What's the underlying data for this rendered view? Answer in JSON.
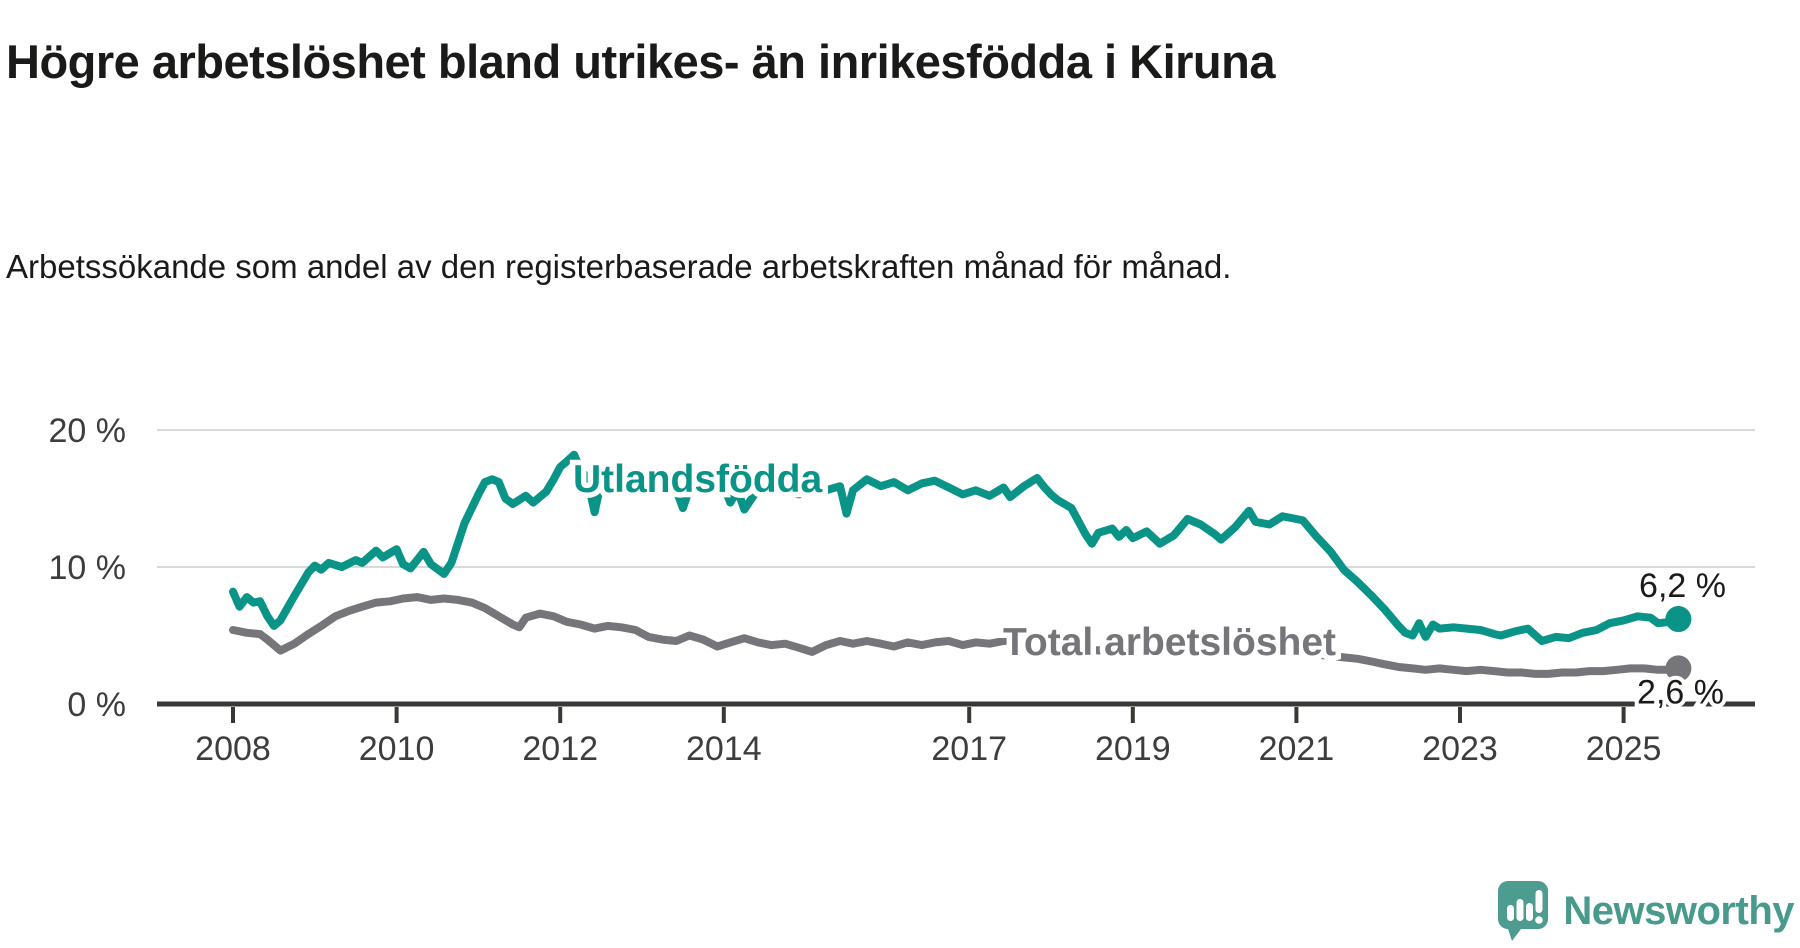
{
  "chart_data": {
    "type": "line",
    "title": "Högre arbetslöshet bland utrikes- än inrikesfödda i Kiruna",
    "subtitle": "Arbetssökande som andel av den registerbaserade arbetskraften månad för månad.",
    "xlabel": "",
    "ylabel": "",
    "xlim": [
      2007.1,
      2026.6
    ],
    "ylim": [
      0,
      20
    ],
    "grid": true,
    "legend_position": "inline",
    "x_ticks": [
      {
        "year": 2008,
        "label": "2008"
      },
      {
        "year": 2010,
        "label": "2010"
      },
      {
        "year": 2012,
        "label": "2012"
      },
      {
        "year": 2014,
        "label": "2014"
      },
      {
        "year": 2017,
        "label": "2017"
      },
      {
        "year": 2019,
        "label": "2019"
      },
      {
        "year": 2021,
        "label": "2021"
      },
      {
        "year": 2023,
        "label": "2023"
      },
      {
        "year": 2025,
        "label": "2025"
      }
    ],
    "y_ticks": [
      {
        "value": 0,
        "label": "0 %"
      },
      {
        "value": 10,
        "label": "10 %"
      },
      {
        "value": 20,
        "label": "20 %"
      }
    ],
    "series": [
      {
        "name": "Utlandsfödda",
        "inline_label": "Utlandsfödda",
        "color": "#0a9387",
        "end_value": 6.2,
        "end_value_label": "6,2 %",
        "points": [
          [
            2008.0,
            8.2
          ],
          [
            2008.08,
            7.1
          ],
          [
            2008.17,
            7.8
          ],
          [
            2008.25,
            7.4
          ],
          [
            2008.33,
            7.5
          ],
          [
            2008.42,
            6.4
          ],
          [
            2008.5,
            5.7
          ],
          [
            2008.58,
            6.1
          ],
          [
            2008.75,
            7.9
          ],
          [
            2008.92,
            9.6
          ],
          [
            2009.0,
            10.1
          ],
          [
            2009.08,
            9.8
          ],
          [
            2009.17,
            10.3
          ],
          [
            2009.33,
            10.0
          ],
          [
            2009.5,
            10.5
          ],
          [
            2009.58,
            10.3
          ],
          [
            2009.75,
            11.2
          ],
          [
            2009.83,
            10.7
          ],
          [
            2010.0,
            11.3
          ],
          [
            2010.08,
            10.2
          ],
          [
            2010.17,
            9.9
          ],
          [
            2010.33,
            11.1
          ],
          [
            2010.42,
            10.2
          ],
          [
            2010.58,
            9.5
          ],
          [
            2010.67,
            10.3
          ],
          [
            2010.83,
            13.2
          ],
          [
            2011.0,
            15.3
          ],
          [
            2011.08,
            16.2
          ],
          [
            2011.17,
            16.4
          ],
          [
            2011.25,
            16.2
          ],
          [
            2011.33,
            15.0
          ],
          [
            2011.42,
            14.6
          ],
          [
            2011.5,
            14.9
          ],
          [
            2011.58,
            15.2
          ],
          [
            2011.67,
            14.7
          ],
          [
            2011.83,
            15.5
          ],
          [
            2011.92,
            16.4
          ],
          [
            2012.0,
            17.3
          ],
          [
            2012.08,
            17.7
          ],
          [
            2012.17,
            18.2
          ],
          [
            2012.25,
            17.1
          ],
          [
            2012.33,
            16.5
          ],
          [
            2012.42,
            14.0
          ],
          [
            2012.5,
            16.2
          ],
          [
            2012.58,
            16.5
          ],
          [
            2012.75,
            16.1
          ],
          [
            2012.92,
            16.4
          ],
          [
            2013.08,
            15.8
          ],
          [
            2013.25,
            16.2
          ],
          [
            2013.42,
            15.6
          ],
          [
            2013.5,
            14.3
          ],
          [
            2013.58,
            15.7
          ],
          [
            2013.75,
            16.0
          ],
          [
            2013.92,
            15.6
          ],
          [
            2014.0,
            15.9
          ],
          [
            2014.08,
            14.7
          ],
          [
            2014.17,
            15.6
          ],
          [
            2014.25,
            14.2
          ],
          [
            2014.42,
            15.7
          ],
          [
            2014.58,
            15.9
          ],
          [
            2014.75,
            15.6
          ],
          [
            2014.92,
            15.3
          ],
          [
            2015.08,
            15.8
          ],
          [
            2015.25,
            15.6
          ],
          [
            2015.42,
            15.9
          ],
          [
            2015.5,
            13.9
          ],
          [
            2015.58,
            15.6
          ],
          [
            2015.75,
            16.4
          ],
          [
            2015.92,
            15.9
          ],
          [
            2016.08,
            16.2
          ],
          [
            2016.25,
            15.6
          ],
          [
            2016.42,
            16.1
          ],
          [
            2016.58,
            16.3
          ],
          [
            2016.75,
            15.8
          ],
          [
            2016.92,
            15.3
          ],
          [
            2017.08,
            15.6
          ],
          [
            2017.25,
            15.2
          ],
          [
            2017.42,
            15.8
          ],
          [
            2017.5,
            15.1
          ],
          [
            2017.67,
            15.9
          ],
          [
            2017.83,
            16.5
          ],
          [
            2017.92,
            15.8
          ],
          [
            2018.0,
            15.3
          ],
          [
            2018.08,
            14.9
          ],
          [
            2018.25,
            14.3
          ],
          [
            2018.42,
            12.4
          ],
          [
            2018.5,
            11.7
          ],
          [
            2018.58,
            12.5
          ],
          [
            2018.75,
            12.8
          ],
          [
            2018.83,
            12.2
          ],
          [
            2018.92,
            12.7
          ],
          [
            2019.0,
            12.1
          ],
          [
            2019.17,
            12.6
          ],
          [
            2019.33,
            11.7
          ],
          [
            2019.5,
            12.3
          ],
          [
            2019.67,
            13.5
          ],
          [
            2019.83,
            13.1
          ],
          [
            2020.0,
            12.4
          ],
          [
            2020.08,
            12.0
          ],
          [
            2020.25,
            12.9
          ],
          [
            2020.42,
            14.1
          ],
          [
            2020.5,
            13.3
          ],
          [
            2020.67,
            13.1
          ],
          [
            2020.83,
            13.7
          ],
          [
            2021.0,
            13.5
          ],
          [
            2021.08,
            13.4
          ],
          [
            2021.25,
            12.2
          ],
          [
            2021.42,
            11.1
          ],
          [
            2021.58,
            9.8
          ],
          [
            2021.75,
            8.9
          ],
          [
            2021.92,
            7.9
          ],
          [
            2022.08,
            6.9
          ],
          [
            2022.25,
            5.7
          ],
          [
            2022.33,
            5.2
          ],
          [
            2022.42,
            5.0
          ],
          [
            2022.5,
            5.9
          ],
          [
            2022.58,
            4.9
          ],
          [
            2022.67,
            5.8
          ],
          [
            2022.75,
            5.5
          ],
          [
            2022.92,
            5.6
          ],
          [
            2023.08,
            5.5
          ],
          [
            2023.25,
            5.4
          ],
          [
            2023.42,
            5.1
          ],
          [
            2023.5,
            5.0
          ],
          [
            2023.67,
            5.3
          ],
          [
            2023.83,
            5.5
          ],
          [
            2024.0,
            4.6
          ],
          [
            2024.17,
            4.9
          ],
          [
            2024.33,
            4.8
          ],
          [
            2024.5,
            5.2
          ],
          [
            2024.67,
            5.4
          ],
          [
            2024.83,
            5.9
          ],
          [
            2025.0,
            6.1
          ],
          [
            2025.17,
            6.4
          ],
          [
            2025.33,
            6.3
          ],
          [
            2025.42,
            5.9
          ],
          [
            2025.58,
            6.0
          ],
          [
            2025.67,
            6.2
          ]
        ]
      },
      {
        "name": "Total arbetslöshet",
        "inline_label": "Total arbetslöshet",
        "color": "#76757a",
        "end_value": 2.6,
        "end_value_label": "2,6 %",
        "points": [
          [
            2008.0,
            5.4
          ],
          [
            2008.17,
            5.2
          ],
          [
            2008.33,
            5.1
          ],
          [
            2008.42,
            4.7
          ],
          [
            2008.58,
            3.9
          ],
          [
            2008.75,
            4.4
          ],
          [
            2008.92,
            5.1
          ],
          [
            2009.08,
            5.7
          ],
          [
            2009.25,
            6.4
          ],
          [
            2009.42,
            6.8
          ],
          [
            2009.58,
            7.1
          ],
          [
            2009.75,
            7.4
          ],
          [
            2009.92,
            7.5
          ],
          [
            2010.08,
            7.7
          ],
          [
            2010.25,
            7.8
          ],
          [
            2010.42,
            7.6
          ],
          [
            2010.58,
            7.7
          ],
          [
            2010.75,
            7.6
          ],
          [
            2010.92,
            7.4
          ],
          [
            2011.08,
            7.0
          ],
          [
            2011.25,
            6.4
          ],
          [
            2011.42,
            5.8
          ],
          [
            2011.5,
            5.6
          ],
          [
            2011.58,
            6.3
          ],
          [
            2011.75,
            6.6
          ],
          [
            2011.92,
            6.4
          ],
          [
            2012.08,
            6.0
          ],
          [
            2012.25,
            5.8
          ],
          [
            2012.42,
            5.5
          ],
          [
            2012.58,
            5.7
          ],
          [
            2012.75,
            5.6
          ],
          [
            2012.92,
            5.4
          ],
          [
            2013.08,
            4.9
          ],
          [
            2013.25,
            4.7
          ],
          [
            2013.42,
            4.6
          ],
          [
            2013.58,
            5.0
          ],
          [
            2013.75,
            4.7
          ],
          [
            2013.92,
            4.2
          ],
          [
            2014.08,
            4.5
          ],
          [
            2014.25,
            4.8
          ],
          [
            2014.42,
            4.5
          ],
          [
            2014.58,
            4.3
          ],
          [
            2014.75,
            4.4
          ],
          [
            2014.92,
            4.1
          ],
          [
            2015.08,
            3.8
          ],
          [
            2015.25,
            4.3
          ],
          [
            2015.42,
            4.6
          ],
          [
            2015.58,
            4.4
          ],
          [
            2015.75,
            4.6
          ],
          [
            2015.92,
            4.4
          ],
          [
            2016.08,
            4.2
          ],
          [
            2016.25,
            4.5
          ],
          [
            2016.42,
            4.3
          ],
          [
            2016.58,
            4.5
          ],
          [
            2016.75,
            4.6
          ],
          [
            2016.92,
            4.3
          ],
          [
            2017.08,
            4.5
          ],
          [
            2017.25,
            4.4
          ],
          [
            2017.42,
            4.6
          ],
          [
            2017.58,
            4.7
          ],
          [
            2017.75,
            4.5
          ],
          [
            2017.92,
            4.3
          ],
          [
            2018.08,
            4.2
          ],
          [
            2018.25,
            4.4
          ],
          [
            2018.42,
            4.1
          ],
          [
            2018.58,
            3.9
          ],
          [
            2018.75,
            4.1
          ],
          [
            2018.92,
            4.0
          ],
          [
            2019.08,
            3.8
          ],
          [
            2019.25,
            3.9
          ],
          [
            2019.42,
            4.0
          ],
          [
            2019.58,
            3.9
          ],
          [
            2019.75,
            4.1
          ],
          [
            2019.92,
            4.0
          ],
          [
            2020.08,
            3.9
          ],
          [
            2020.25,
            4.1
          ],
          [
            2020.42,
            4.3
          ],
          [
            2020.58,
            4.2
          ],
          [
            2020.75,
            4.1
          ],
          [
            2020.92,
            3.9
          ],
          [
            2021.08,
            3.8
          ],
          [
            2021.25,
            3.6
          ],
          [
            2021.42,
            3.5
          ],
          [
            2021.58,
            3.4
          ],
          [
            2021.75,
            3.3
          ],
          [
            2021.92,
            3.1
          ],
          [
            2022.08,
            2.9
          ],
          [
            2022.25,
            2.7
          ],
          [
            2022.42,
            2.6
          ],
          [
            2022.58,
            2.5
          ],
          [
            2022.75,
            2.6
          ],
          [
            2022.92,
            2.5
          ],
          [
            2023.08,
            2.4
          ],
          [
            2023.25,
            2.5
          ],
          [
            2023.42,
            2.4
          ],
          [
            2023.58,
            2.3
          ],
          [
            2023.75,
            2.3
          ],
          [
            2023.92,
            2.2
          ],
          [
            2024.08,
            2.2
          ],
          [
            2024.25,
            2.3
          ],
          [
            2024.42,
            2.3
          ],
          [
            2024.58,
            2.4
          ],
          [
            2024.75,
            2.4
          ],
          [
            2024.92,
            2.5
          ],
          [
            2025.08,
            2.6
          ],
          [
            2025.25,
            2.6
          ],
          [
            2025.42,
            2.5
          ],
          [
            2025.58,
            2.5
          ],
          [
            2025.67,
            2.6
          ]
        ]
      }
    ],
    "colors": {
      "grid": "#d9d9d9",
      "axis": "#383835",
      "tick_label": "#3d3d3c",
      "value_label": "#1a1a18",
      "background": "#ffffff"
    }
  },
  "logo": {
    "text": "Newsworthy",
    "icon": "newsworthy-speech-bubble-bar-chart-icon",
    "color": "#479a8c",
    "icon_color": "#4d9c8f"
  }
}
